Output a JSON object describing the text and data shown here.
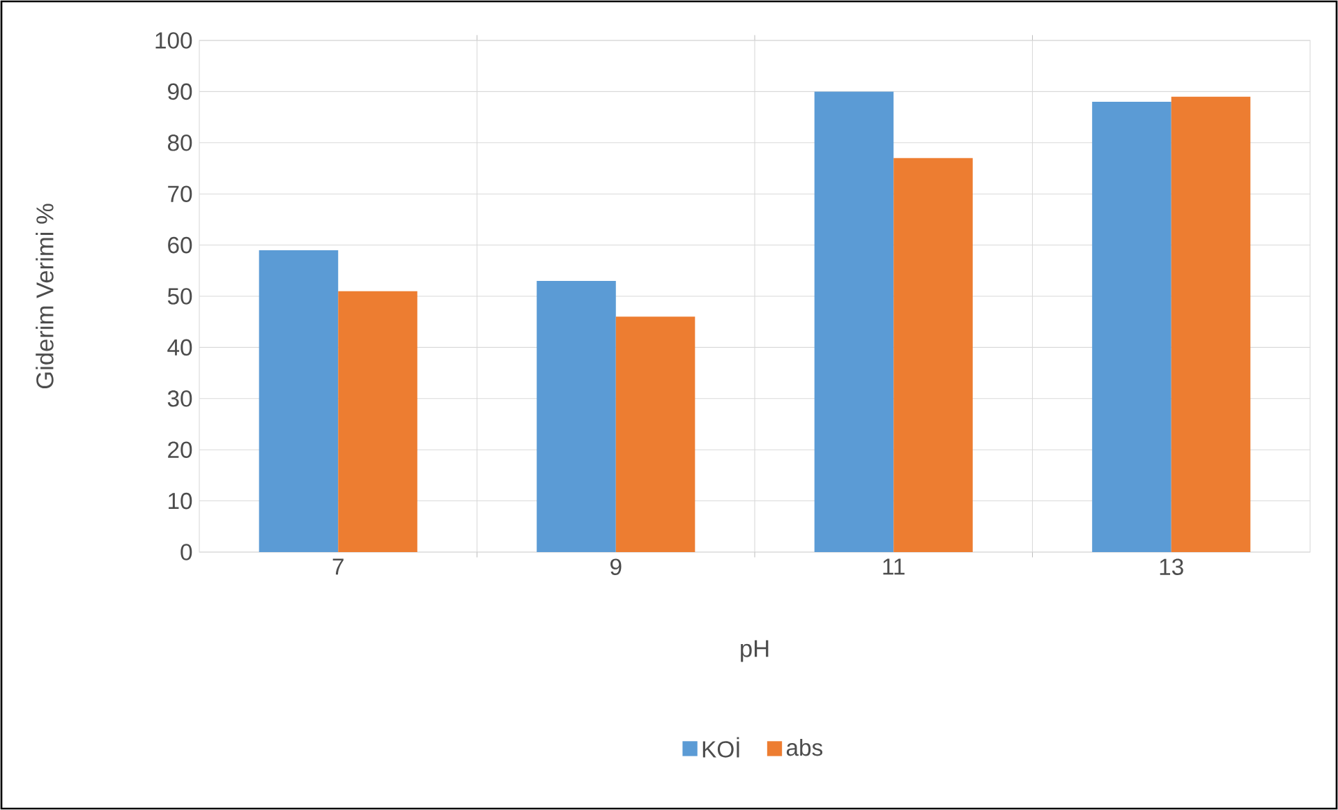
{
  "chart_data": {
    "type": "bar",
    "xlabel": "pH",
    "ylabel": "Giderim Verimi %",
    "categories": [
      "7",
      "9",
      "11",
      "13"
    ],
    "series": [
      {
        "name": "KOİ",
        "color": "#5b9bd5",
        "values": [
          59,
          53,
          90,
          88
        ]
      },
      {
        "name": "abs",
        "color": "#ed7d31",
        "values": [
          51,
          46,
          77,
          89
        ]
      }
    ],
    "ylim": [
      0,
      100
    ],
    "yticks": [
      0,
      10,
      20,
      30,
      40,
      50,
      60,
      70,
      80,
      90,
      100
    ],
    "grid": true,
    "legend": "bottom"
  }
}
